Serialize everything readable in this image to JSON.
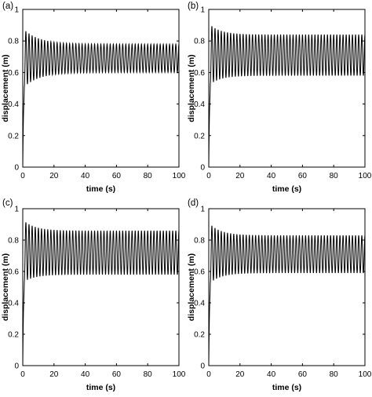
{
  "chart_data": [
    {
      "panel_label": "(a)",
      "type": "line",
      "xlabel": "time (s)",
      "ylabel": "displacement (m)",
      "xlim": [
        0,
        100
      ],
      "ylim": [
        0,
        1
      ],
      "xticks": [
        "0",
        "20",
        "40",
        "60",
        "80",
        "100"
      ],
      "yticks": [
        "0",
        "0.2",
        "0.4",
        "0.6",
        "0.8",
        "1"
      ],
      "grid": false,
      "series": [
        {
          "color": "#000000",
          "cycles": 50,
          "initial_peak": 0.88,
          "initial_trough": 0.5,
          "steady_max": 0.78,
          "steady_min": 0.6,
          "settle_time": 40
        }
      ]
    },
    {
      "panel_label": "(b)",
      "type": "line",
      "xlabel": "time (s)",
      "ylabel": "displacement (m)",
      "xlim": [
        0,
        100
      ],
      "ylim": [
        0,
        1
      ],
      "xticks": [
        "0",
        "20",
        "40",
        "60",
        "80",
        "100"
      ],
      "yticks": [
        "0",
        "0.2",
        "0.4",
        "0.6",
        "0.8",
        "1"
      ],
      "grid": false,
      "series": [
        {
          "color": "#000000",
          "cycles": 50,
          "initial_peak": 0.91,
          "initial_trough": 0.52,
          "steady_max": 0.84,
          "steady_min": 0.58,
          "settle_time": 30
        }
      ]
    },
    {
      "panel_label": "(c)",
      "type": "line",
      "xlabel": "time (s)",
      "ylabel": "displacement (m)",
      "xlim": [
        0,
        100
      ],
      "ylim": [
        0,
        1
      ],
      "xticks": [
        "0",
        "20",
        "40",
        "60",
        "80",
        "100"
      ],
      "yticks": [
        "0",
        "0.2",
        "0.4",
        "0.6",
        "0.8",
        "1"
      ],
      "grid": false,
      "series": [
        {
          "color": "#000000",
          "cycles": 50,
          "initial_peak": 0.93,
          "initial_trough": 0.53,
          "steady_max": 0.86,
          "steady_min": 0.58,
          "settle_time": 30
        }
      ]
    },
    {
      "panel_label": "(d)",
      "type": "line",
      "xlabel": "time (s)",
      "ylabel": "displacement (m)",
      "xlim": [
        0,
        100
      ],
      "ylim": [
        0,
        1
      ],
      "xticks": [
        "0",
        "20",
        "40",
        "60",
        "80",
        "100"
      ],
      "yticks": [
        "0",
        "0.2",
        "0.4",
        "0.6",
        "0.8",
        "1"
      ],
      "grid": false,
      "series": [
        {
          "color": "#000000",
          "cycles": 50,
          "initial_peak": 0.91,
          "initial_trough": 0.52,
          "steady_max": 0.83,
          "steady_min": 0.59,
          "settle_time": 30
        }
      ]
    }
  ]
}
